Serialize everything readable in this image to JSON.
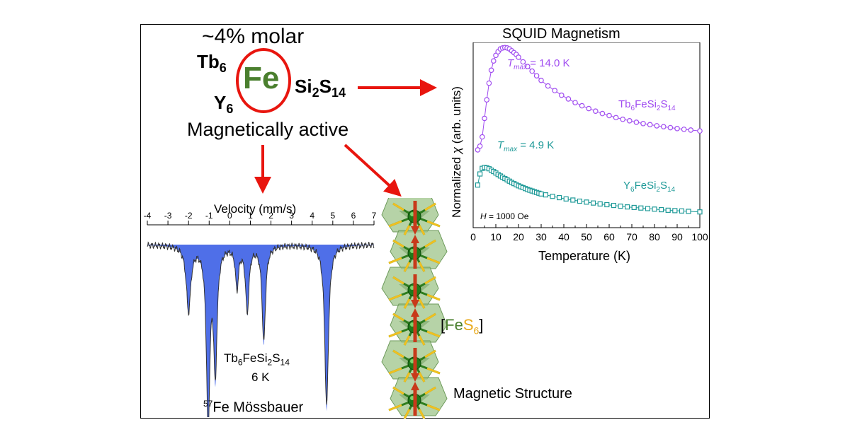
{
  "header": {
    "molar": "~4% molar",
    "fe": "Fe",
    "tb": "Tb",
    "tb_sub": "6",
    "y": "Y",
    "y_sub": "6",
    "si": "Si",
    "si_sub": "2",
    "s": "S",
    "s_sub": "14",
    "magnetically_active": "Magnetically active"
  },
  "mossbauer": {
    "axis_title": "Velocity (mm/s)",
    "ticks": [
      "-4",
      "-3",
      "-2",
      "-1",
      "0",
      "1",
      "2",
      "3",
      "4",
      "5",
      "6",
      "7"
    ],
    "compound": "Tb6FeSi2S14",
    "temperature": "6 K",
    "caption_sup": "57",
    "caption": "Fe Mössbauer"
  },
  "structure": {
    "label_open": "[",
    "label_fe": "Fe",
    "label_s": "S",
    "label_sub": "6",
    "label_close": "]",
    "caption": "Magnetic Structure"
  },
  "colors": {
    "arrow": "#e8150e",
    "fe_green": "#4a7f2e",
    "purple": "#a04cf0",
    "teal": "#1f9a98",
    "mossbauer_fill": "#4f6fe8",
    "sulfur_yellow": "#f0c020"
  },
  "chart_data": {
    "type": "scatter",
    "title": "SQUID Magnetism",
    "xlabel": "Temperature (K)",
    "ylabel": "Normalized χ (arb. units)",
    "xlim": [
      0,
      100
    ],
    "xticks": [
      "0",
      "10",
      "20",
      "30",
      "40",
      "50",
      "60",
      "70",
      "80",
      "90",
      "100"
    ],
    "annotation": "H = 1000 Oe",
    "series": [
      {
        "name": "Tb6FeSi2S14",
        "marker": "circle",
        "tmax_label": "Tmax = 14.0 K",
        "x": [
          2,
          3,
          4,
          5,
          6,
          7,
          8,
          9,
          10,
          11,
          12,
          13,
          14,
          15,
          16,
          17,
          18,
          19,
          20,
          22,
          24,
          26,
          28,
          30,
          33,
          36,
          39,
          42,
          45,
          48,
          51,
          54,
          57,
          60,
          63,
          66,
          69,
          72,
          75,
          78,
          81,
          84,
          87,
          90,
          93,
          96,
          100
        ],
        "y": [
          0.42,
          0.44,
          0.49,
          0.59,
          0.69,
          0.78,
          0.85,
          0.9,
          0.93,
          0.95,
          0.965,
          0.97,
          0.972,
          0.97,
          0.965,
          0.955,
          0.945,
          0.935,
          0.92,
          0.895,
          0.87,
          0.845,
          0.82,
          0.795,
          0.765,
          0.74,
          0.715,
          0.695,
          0.675,
          0.658,
          0.643,
          0.629,
          0.616,
          0.605,
          0.594,
          0.585,
          0.577,
          0.569,
          0.562,
          0.556,
          0.55,
          0.545,
          0.54,
          0.535,
          0.531,
          0.527,
          0.522
        ]
      },
      {
        "name": "Y6FeSi2S14",
        "marker": "square",
        "tmax_label": "Tmax = 4.9 K",
        "x": [
          2,
          3,
          4,
          5,
          6,
          7,
          8,
          9,
          10,
          11,
          12,
          13,
          14,
          15,
          16,
          17,
          18,
          19,
          20,
          21,
          22,
          23,
          24,
          25,
          26,
          27,
          28,
          29,
          30,
          32,
          35,
          38,
          41,
          44,
          47,
          50,
          53,
          56,
          59,
          62,
          65,
          68,
          71,
          74,
          77,
          80,
          83,
          86,
          89,
          92,
          95,
          100
        ],
        "y": [
          0.23,
          0.29,
          0.32,
          0.325,
          0.323,
          0.318,
          0.31,
          0.303,
          0.295,
          0.287,
          0.279,
          0.272,
          0.265,
          0.258,
          0.251,
          0.244,
          0.238,
          0.232,
          0.226,
          0.221,
          0.216,
          0.211,
          0.206,
          0.202,
          0.198,
          0.194,
          0.19,
          0.186,
          0.182,
          0.177,
          0.169,
          0.162,
          0.155,
          0.149,
          0.143,
          0.138,
          0.133,
          0.128,
          0.124,
          0.12,
          0.116,
          0.112,
          0.109,
          0.106,
          0.103,
          0.1,
          0.097,
          0.094,
          0.092,
          0.09,
          0.088,
          0.085
        ]
      }
    ],
    "series_labels": [
      {
        "base": "Tb",
        "s1": "6",
        "m": "FeSi",
        "s2": "2",
        "m2": "S",
        "s3": "14"
      },
      {
        "base": "Y",
        "s1": "6",
        "m": "FeSi",
        "s2": "2",
        "m2": "S",
        "s3": "14"
      }
    ]
  }
}
